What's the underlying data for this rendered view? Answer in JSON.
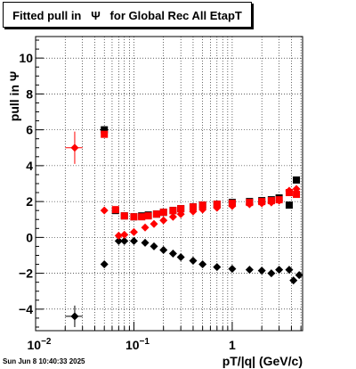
{
  "chart_data": {
    "type": "scatter",
    "title": "Fitted pull in   Ψ   for Global Rec All EtapT",
    "xlabel": "pT/|q| (GeV/c)",
    "ylabel": "pull in Ψ",
    "xscale": "log",
    "xlim": [
      0.01,
      5.2
    ],
    "ylim": [
      -5.2,
      11.2
    ],
    "grid": true,
    "y_ticks": [
      -4,
      -2,
      0,
      2,
      4,
      6,
      8,
      10
    ],
    "y_tick_labels": [
      "−4",
      "−2",
      "0",
      "2",
      "4",
      "6",
      "8",
      "10"
    ],
    "x_major_ticks": [
      0.01,
      0.1,
      1
    ],
    "x_tick_labels": [
      {
        "base": "10",
        "exp": "−2"
      },
      {
        "base": "10",
        "exp": "−1"
      },
      {
        "base": "1",
        "exp": ""
      }
    ],
    "series": [
      {
        "color": "#000000",
        "marker": "square",
        "points": [
          {
            "x": 0.05,
            "y": 6.0,
            "xerr": [
              0.045,
              0.055
            ],
            "yerr": 0.2
          },
          {
            "x": 0.065,
            "y": 1.5
          },
          {
            "x": 0.08,
            "y": 1.2
          },
          {
            "x": 0.1,
            "y": 1.15
          },
          {
            "x": 0.12,
            "y": 1.2
          },
          {
            "x": 0.14,
            "y": 1.25
          },
          {
            "x": 0.17,
            "y": 1.3
          },
          {
            "x": 0.2,
            "y": 1.4
          },
          {
            "x": 0.25,
            "y": 1.5
          },
          {
            "x": 0.3,
            "y": 1.6
          },
          {
            "x": 0.4,
            "y": 1.7
          },
          {
            "x": 0.5,
            "y": 1.8
          },
          {
            "x": 0.7,
            "y": 1.85
          },
          {
            "x": 1.0,
            "y": 1.95
          },
          {
            "x": 1.5,
            "y": 2.0
          },
          {
            "x": 2.0,
            "y": 2.05
          },
          {
            "x": 2.5,
            "y": 2.1
          },
          {
            "x": 3.0,
            "y": 2.2
          },
          {
            "x": 3.8,
            "y": 1.8
          },
          {
            "x": 4.5,
            "y": 3.2
          }
        ]
      },
      {
        "color": "#ff0000",
        "marker": "square",
        "points": [
          {
            "x": 0.05,
            "y": 5.75
          },
          {
            "x": 0.065,
            "y": 1.55
          },
          {
            "x": 0.08,
            "y": 1.2
          },
          {
            "x": 0.1,
            "y": 1.15
          },
          {
            "x": 0.12,
            "y": 1.15
          },
          {
            "x": 0.14,
            "y": 1.2
          },
          {
            "x": 0.17,
            "y": 1.3
          },
          {
            "x": 0.2,
            "y": 1.4
          },
          {
            "x": 0.25,
            "y": 1.5
          },
          {
            "x": 0.3,
            "y": 1.6
          },
          {
            "x": 0.4,
            "y": 1.7
          },
          {
            "x": 0.5,
            "y": 1.8
          },
          {
            "x": 0.7,
            "y": 1.85
          },
          {
            "x": 1.0,
            "y": 1.9
          },
          {
            "x": 1.5,
            "y": 1.95
          },
          {
            "x": 2.0,
            "y": 2.0
          },
          {
            "x": 2.5,
            "y": 2.05
          },
          {
            "x": 3.0,
            "y": 2.1
          },
          {
            "x": 3.8,
            "y": 2.5
          },
          {
            "x": 4.5,
            "y": 2.4
          }
        ]
      },
      {
        "color": "#000000",
        "marker": "diamond",
        "points": [
          {
            "x": 0.025,
            "y": -4.4,
            "xerr": [
              0.02,
              0.03
            ],
            "yerr": 0.6
          },
          {
            "x": 0.05,
            "y": -1.5,
            "yerr": 0.2
          },
          {
            "x": 0.07,
            "y": -0.2
          },
          {
            "x": 0.08,
            "y": -0.2
          },
          {
            "x": 0.1,
            "y": -0.2
          },
          {
            "x": 0.13,
            "y": -0.3
          },
          {
            "x": 0.16,
            "y": -0.5
          },
          {
            "x": 0.2,
            "y": -0.7
          },
          {
            "x": 0.25,
            "y": -0.9
          },
          {
            "x": 0.3,
            "y": -1.1
          },
          {
            "x": 0.4,
            "y": -1.3
          },
          {
            "x": 0.5,
            "y": -1.5
          },
          {
            "x": 0.7,
            "y": -1.65
          },
          {
            "x": 1.0,
            "y": -1.75
          },
          {
            "x": 1.5,
            "y": -1.8
          },
          {
            "x": 2.0,
            "y": -1.85
          },
          {
            "x": 2.5,
            "y": -2.0
          },
          {
            "x": 3.0,
            "y": -1.8
          },
          {
            "x": 3.8,
            "y": -1.8
          },
          {
            "x": 4.2,
            "y": -2.4
          },
          {
            "x": 4.8,
            "y": -2.1
          }
        ]
      },
      {
        "color": "#ff0000",
        "marker": "diamond",
        "points": [
          {
            "x": 0.025,
            "y": 5.0,
            "xerr": [
              0.02,
              0.03
            ],
            "yerr": 0.9
          },
          {
            "x": 0.05,
            "y": 1.5,
            "yerr": 0.15
          },
          {
            "x": 0.07,
            "y": 0.1
          },
          {
            "x": 0.08,
            "y": 0.15
          },
          {
            "x": 0.1,
            "y": 0.3
          },
          {
            "x": 0.13,
            "y": 0.55
          },
          {
            "x": 0.16,
            "y": 0.75
          },
          {
            "x": 0.2,
            "y": 0.95
          },
          {
            "x": 0.25,
            "y": 1.15
          },
          {
            "x": 0.3,
            "y": 1.3
          },
          {
            "x": 0.4,
            "y": 1.45
          },
          {
            "x": 0.5,
            "y": 1.55
          },
          {
            "x": 0.7,
            "y": 1.65
          },
          {
            "x": 1.0,
            "y": 1.75
          },
          {
            "x": 1.5,
            "y": 1.85
          },
          {
            "x": 2.0,
            "y": 1.9
          },
          {
            "x": 2.5,
            "y": 1.95
          },
          {
            "x": 3.0,
            "y": 2.05
          },
          {
            "x": 3.8,
            "y": 2.6
          },
          {
            "x": 4.5,
            "y": 2.7
          }
        ]
      }
    ]
  },
  "footer": "Sun Jun  8 10:40:33 2025"
}
